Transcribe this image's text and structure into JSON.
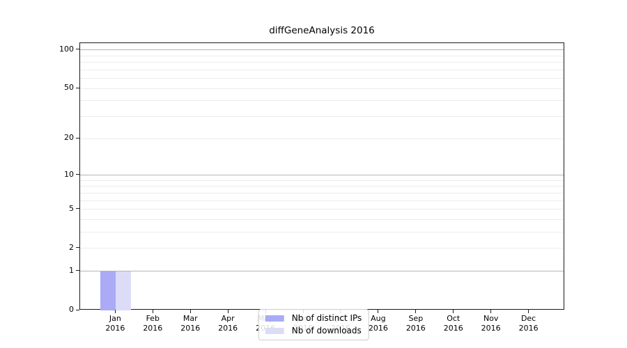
{
  "title": "diffGeneAnalysis 2016",
  "chart_data": {
    "type": "bar",
    "title": "diffGeneAnalysis 2016",
    "x_axis": {
      "months": [
        "Jan",
        "Feb",
        "Mar",
        "Apr",
        "May",
        "Jun",
        "Jul",
        "Aug",
        "Sep",
        "Oct",
        "Nov",
        "Dec"
      ],
      "year_label": "2016"
    },
    "y_axis": {
      "scale": "log1p",
      "labeled_ticks": [
        0,
        1,
        2,
        5,
        10,
        20,
        50,
        100
      ],
      "gridlines_emphasized": [
        1,
        10,
        100
      ],
      "gridlines_light": [
        2,
        3,
        4,
        5,
        6,
        7,
        8,
        9,
        20,
        30,
        40,
        50,
        60,
        70,
        80,
        90
      ],
      "ylim": [
        0,
        113
      ],
      "grid": true
    },
    "series": [
      {
        "name": "Nb of distinct IPs",
        "color": "#aaaaf7",
        "values": [
          1,
          0,
          0,
          0,
          0,
          0,
          0,
          0,
          0,
          0,
          0,
          0
        ]
      },
      {
        "name": "Nb of downloads",
        "color": "#dcdcf7",
        "values": [
          1,
          0,
          0,
          0,
          0,
          0,
          0,
          0,
          0,
          0,
          0,
          0
        ]
      }
    ],
    "legend": {
      "position": "lower center",
      "labels": [
        "Nb of distinct IPs",
        "Nb of downloads"
      ]
    }
  },
  "colors": {
    "background": "#ffffff",
    "spine": "#1a1a1a",
    "grid_major": "#b4b4b4",
    "grid_minor": "#ececec",
    "bar_distinct_ips": "#aaaaf7",
    "bar_downloads": "#dcdcf7",
    "legend_border": "#cccccc"
  }
}
